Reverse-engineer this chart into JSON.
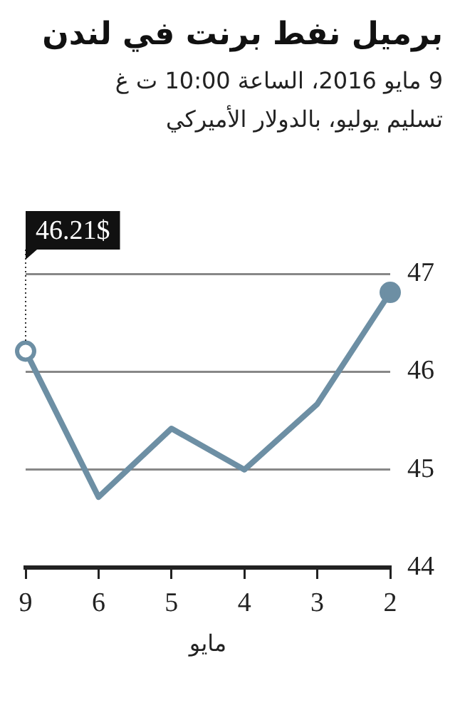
{
  "chart_data": {
    "type": "line",
    "title": "برميل نفط برنت في لندن",
    "subtitle": "9 مايو 2016، الساعة 10:00 ت غ\nتسليم يوليو، بالدولار الأميركي",
    "xlabel": "مايو",
    "categories": [
      "9",
      "6",
      "5",
      "4",
      "3",
      "2"
    ],
    "series": [
      {
        "color": "#6d8fa4",
        "values": [
          46.21,
          44.72,
          45.42,
          45.0,
          45.67,
          46.81
        ]
      }
    ],
    "ylim": [
      44,
      47
    ],
    "yticks": [
      44,
      45,
      46,
      47
    ],
    "grid": "y",
    "legend": false,
    "line_style": "solid",
    "annotations": [
      {
        "text": "46.21$",
        "x": "9",
        "y": 46.21
      }
    ]
  }
}
